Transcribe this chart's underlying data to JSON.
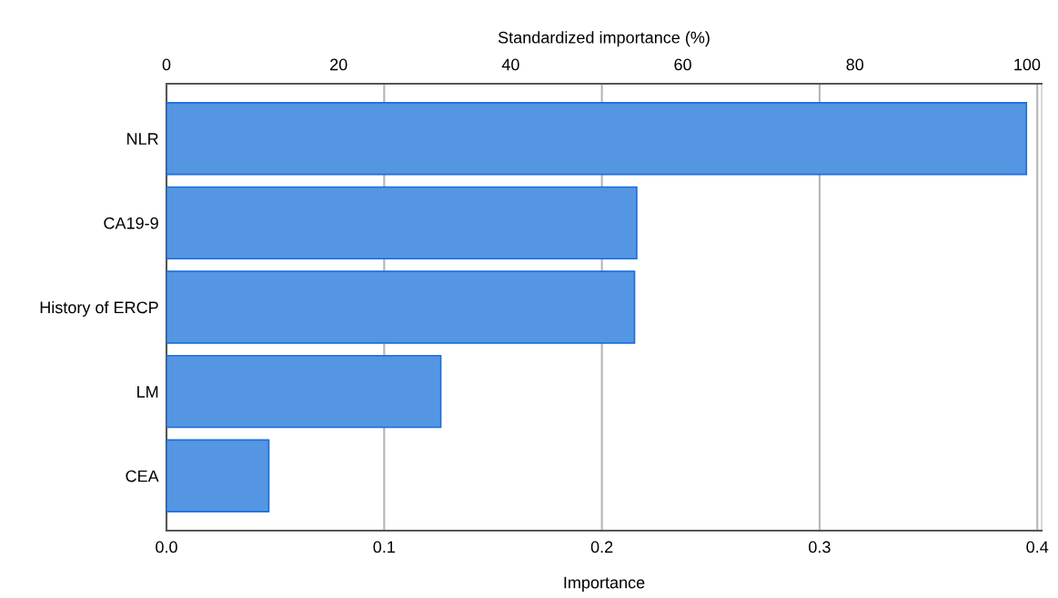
{
  "chart_data": {
    "type": "bar",
    "orientation": "horizontal",
    "xlabel": "Importance",
    "x2label": "Standardized importance (%)",
    "categories": [
      "NLR",
      "CA19-9",
      "History of ERCP",
      "LM",
      "CEA"
    ],
    "values": [
      0.395,
      0.216,
      0.215,
      0.126,
      0.047
    ],
    "color": "#5596e3",
    "xlim": [
      0,
      0.402
    ],
    "xticks": [
      {
        "value": 0,
        "label": "0.0"
      },
      0.1,
      0.2,
      0.3,
      0.4
    ],
    "x2lim": [
      0,
      101.7
    ],
    "x2ticks": [
      0,
      20,
      40,
      60,
      80,
      100
    ],
    "grid": "x"
  }
}
